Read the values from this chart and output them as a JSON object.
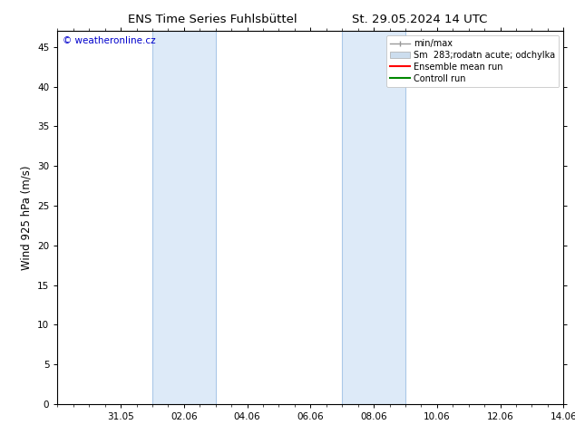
{
  "title_left": "ENS Time Series Fuhlsbüttel",
  "title_right": "St. 29.05.2024 14 UTC",
  "ylabel": "Wind 925 hPa (m/s)",
  "watermark": "© weatheronline.cz",
  "watermark_color": "#0000cc",
  "ylim": [
    0,
    47
  ],
  "yticks": [
    0,
    5,
    10,
    15,
    20,
    25,
    30,
    35,
    40,
    45
  ],
  "xlim": [
    0,
    16
  ],
  "xtick_labels": [
    "31.05",
    "02.06",
    "04.06",
    "06.06",
    "08.06",
    "10.06",
    "12.06",
    "14.06"
  ],
  "xtick_positions": [
    2,
    4,
    6,
    8,
    10,
    12,
    14,
    16
  ],
  "shaded_regions": [
    {
      "start": 3.0,
      "end": 5.0
    },
    {
      "start": 9.0,
      "end": 11.0
    }
  ],
  "shaded_color": "#ddeaf8",
  "shaded_edge_color": "#aac8e8",
  "bg_color": "#ffffff",
  "plot_bg_color": "#ffffff",
  "legend_entries": [
    {
      "label": "min/max",
      "color": "#999999",
      "style": "minmax"
    },
    {
      "label": "Sm  283;rodatn acute; odchylka",
      "color": "#ccddee",
      "style": "fill"
    },
    {
      "label": "Ensemble mean run",
      "color": "#ff0000",
      "style": "line"
    },
    {
      "label": "Controll run",
      "color": "#008800",
      "style": "line"
    }
  ],
  "tick_fontsize": 7.5,
  "label_fontsize": 8.5,
  "title_fontsize": 9.5,
  "legend_fontsize": 7
}
